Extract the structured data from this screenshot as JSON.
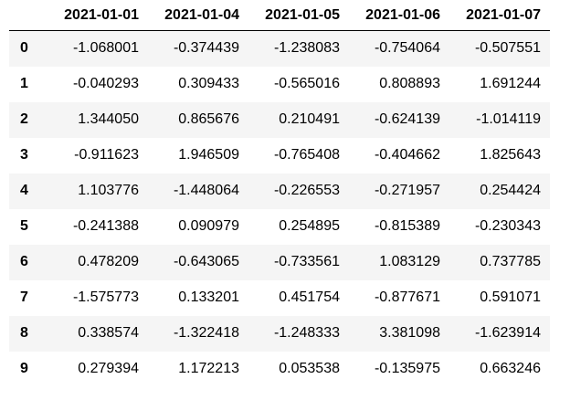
{
  "dataframe": {
    "columns": [
      "2021-01-01",
      "2021-01-04",
      "2021-01-05",
      "2021-01-06",
      "2021-01-07"
    ],
    "index": [
      "0",
      "1",
      "2",
      "3",
      "4",
      "5",
      "6",
      "7",
      "8",
      "9"
    ],
    "rows": [
      [
        "-1.068001",
        "-0.374439",
        "-1.238083",
        "-0.754064",
        "-0.507551"
      ],
      [
        "-0.040293",
        "0.309433",
        "-0.565016",
        "0.808893",
        "1.691244"
      ],
      [
        "1.344050",
        "0.865676",
        "0.210491",
        "-0.624139",
        "-1.014119"
      ],
      [
        "-0.911623",
        "1.946509",
        "-0.765408",
        "-0.404662",
        "1.825643"
      ],
      [
        "1.103776",
        "-1.448064",
        "-0.226553",
        "-0.271957",
        "0.254424"
      ],
      [
        "-0.241388",
        "0.090979",
        "0.254895",
        "-0.815389",
        "-0.230343"
      ],
      [
        "0.478209",
        "-0.643065",
        "-0.733561",
        "1.083129",
        "0.737785"
      ],
      [
        "-1.575773",
        "0.133201",
        "0.451754",
        "-0.877671",
        "0.591071"
      ],
      [
        "0.338574",
        "-1.322418",
        "-1.248333",
        "3.381098",
        "-1.623914"
      ],
      [
        "0.279394",
        "1.172213",
        "0.053538",
        "-0.135975",
        "0.663246"
      ]
    ]
  }
}
